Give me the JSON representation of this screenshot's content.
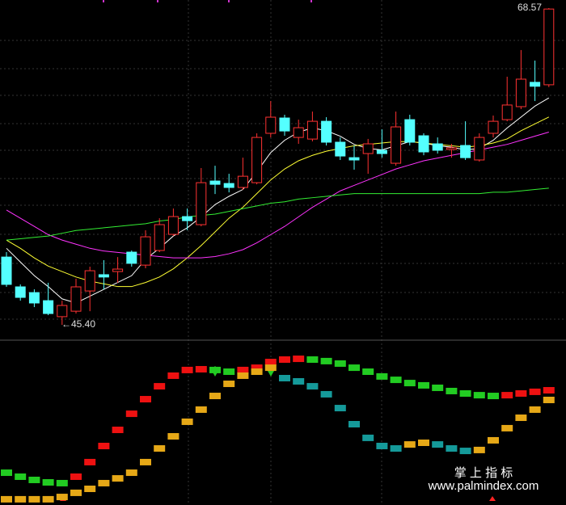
{
  "chart_data": [
    {
      "type": "candlestick",
      "high_label": "68.57",
      "low_label": "←45.40",
      "up_color": "#ff3232",
      "down_color": "#54ffff",
      "ylim": [
        44.34,
        69.16
      ],
      "grid": true,
      "open": [
        50.36,
        48.18,
        47.76,
        47.17,
        46.0,
        46.4,
        47.88,
        49.07,
        49.3,
        50.72,
        49.77,
        50.84,
        52.02,
        53.32,
        52.73,
        55.92,
        55.74,
        55.45,
        55.8,
        59.41,
        60.53,
        59.11,
        58.99,
        60.29,
        58.76,
        57.63,
        57.93,
        58.17,
        57.22,
        60.41,
        59.23,
        58.64,
        58.23,
        58.52,
        57.46,
        59.41,
        60.41,
        61.36,
        63.14,
        62.96
      ],
      "high": [
        50.72,
        48.36,
        48.0,
        48.48,
        47.17,
        48.77,
        49.66,
        50.13,
        50.36,
        50.84,
        52.32,
        53.2,
        53.91,
        53.91,
        56.87,
        57.04,
        56.45,
        57.63,
        59.41,
        61.77,
        60.77,
        60.41,
        61.0,
        60.59,
        59.11,
        58.52,
        59.0,
        59.7,
        61.0,
        60.77,
        59.41,
        59.11,
        58.64,
        60.29,
        59.41,
        60.71,
        63.55,
        65.5,
        64.73,
        68.57
      ],
      "low": [
        48.18,
        47.17,
        46.7,
        46.11,
        45.4,
        46.23,
        46.4,
        47.99,
        48.48,
        49.66,
        49.54,
        50.72,
        51.9,
        52.32,
        52.61,
        54.97,
        55.09,
        55.27,
        55.68,
        59.11,
        59.23,
        58.64,
        58.82,
        58.52,
        57.46,
        56.75,
        56.45,
        57.63,
        57.04,
        58.52,
        57.81,
        57.93,
        57.63,
        57.46,
        57.34,
        59.11,
        60.29,
        61.18,
        61.77,
        62.79
      ],
      "close": [
        48.36,
        47.41,
        47.0,
        46.23,
        46.82,
        48.18,
        49.36,
        48.9,
        49.48,
        49.9,
        51.84,
        52.73,
        53.32,
        53.02,
        55.8,
        55.68,
        55.45,
        56.27,
        59.11,
        60.59,
        59.58,
        59.82,
        60.29,
        58.76,
        57.75,
        57.46,
        58.64,
        57.93,
        59.88,
        58.76,
        58.05,
        58.17,
        58.35,
        57.63,
        59.11,
        60.29,
        61.48,
        63.37,
        62.85,
        68.5
      ],
      "series": [
        {
          "color": "#ffffff",
          "values": [
            51.0,
            50.0,
            49.0,
            48.2,
            47.3,
            47.0,
            47.5,
            48.0,
            48.5,
            49.0,
            50.2,
            51.0,
            51.9,
            52.5,
            53.3,
            54.2,
            54.8,
            55.3,
            56.6,
            58.0,
            58.9,
            59.5,
            59.8,
            59.6,
            59.2,
            58.6,
            58.3,
            58.2,
            58.5,
            58.8,
            58.7,
            58.5,
            58.4,
            58.2,
            58.3,
            58.9,
            59.8,
            60.6,
            61.4,
            62.0
          ]
        },
        {
          "color": "#ffff33",
          "values": [
            51.6,
            51.0,
            50.3,
            49.7,
            49.3,
            48.9,
            48.6,
            48.4,
            48.2,
            48.2,
            48.5,
            48.9,
            49.5,
            50.3,
            51.2,
            52.2,
            53.2,
            54.0,
            55.0,
            56.0,
            56.8,
            57.4,
            57.8,
            58.1,
            58.3,
            58.5,
            58.6,
            58.7,
            58.8,
            58.8,
            58.7,
            58.6,
            58.5,
            58.4,
            58.5,
            58.7,
            59.0,
            59.6,
            60.1,
            60.6
          ]
        },
        {
          "color": "#ff33ff",
          "values": [
            53.8,
            53.2,
            52.6,
            52.0,
            51.6,
            51.3,
            51.0,
            50.8,
            50.7,
            50.6,
            50.5,
            50.4,
            50.3,
            50.3,
            50.3,
            50.4,
            50.6,
            50.9,
            51.4,
            52.0,
            52.6,
            53.3,
            54.0,
            54.6,
            55.2,
            55.6,
            56.0,
            56.4,
            56.8,
            57.1,
            57.4,
            57.6,
            57.8,
            58.0,
            58.2,
            58.4,
            58.6,
            58.9,
            59.2,
            59.5
          ]
        },
        {
          "color": "#33ee33",
          "values": [
            51.6,
            51.7,
            51.8,
            51.9,
            52.1,
            52.3,
            52.4,
            52.5,
            52.6,
            52.7,
            52.8,
            53.0,
            53.1,
            53.3,
            53.4,
            53.5,
            53.7,
            53.9,
            54.1,
            54.3,
            54.4,
            54.6,
            54.7,
            54.8,
            54.9,
            55.0,
            55.0,
            55.0,
            55.0,
            55.0,
            55.0,
            55.0,
            55.0,
            55.0,
            55.0,
            55.1,
            55.1,
            55.2,
            55.3,
            55.4
          ]
        }
      ]
    },
    {
      "type": "ribbon",
      "ylim": [
        0,
        100
      ],
      "series": [
        {
          "up_color": "#ee1111",
          "down_color": "#22cc22",
          "values": [
            18.4,
            15.8,
            13.7,
            12.1,
            11.6,
            15.8,
            25.3,
            35.8,
            46.3,
            56.8,
            66.3,
            74.7,
            81.6,
            85.3,
            85.8,
            85.3,
            84.2,
            85.3,
            86.8,
            90.5,
            92.1,
            92.6,
            92.1,
            91.1,
            89.5,
            86.8,
            84.2,
            81.1,
            78.9,
            76.8,
            75.3,
            73.7,
            71.6,
            70.0,
            68.9,
            68.4,
            68.9,
            70.0,
            71.1,
            72.1
          ]
        },
        {
          "up_color": "#e6a817",
          "down_color": "#159a9a",
          "values": [
            1.1,
            1.1,
            1.1,
            1.1,
            2.6,
            5.3,
            7.9,
            11.6,
            14.7,
            18.4,
            25.3,
            34.2,
            42.1,
            51.6,
            59.5,
            68.4,
            76.3,
            81.6,
            84.2,
            86.8,
            80.0,
            77.9,
            74.7,
            69.5,
            60.5,
            50.0,
            41.1,
            35.8,
            34.2,
            36.8,
            37.9,
            36.8,
            34.2,
            32.6,
            33.2,
            39.5,
            47.4,
            54.2,
            59.5,
            65.8
          ]
        }
      ],
      "watermark_title": "掌 上 指 标",
      "watermark_url": "www.palmindex.com"
    }
  ]
}
